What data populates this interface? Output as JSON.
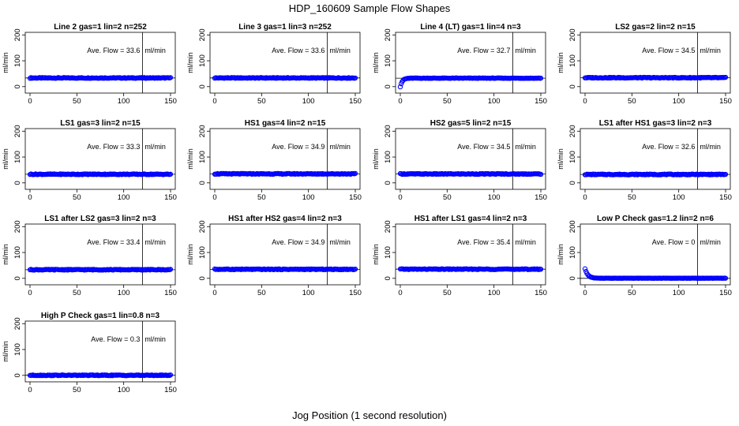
{
  "figure": {
    "title": "HDP_160609  Sample Flow Shapes",
    "xlabel": "Jog Position (1 second resolution)"
  },
  "colors": {
    "points": "#0000ff",
    "axes": "#000000"
  },
  "chart_data": [
    {
      "type": "scatter",
      "title": "Line 2 gas=1 lin=2 n=252",
      "ylabel": "ml/min",
      "xlim": [
        0,
        150
      ],
      "ylim": [
        -25,
        210
      ],
      "xticks": [
        0,
        50,
        100,
        150
      ],
      "yticks": [
        0,
        100,
        200
      ],
      "vline": 120,
      "hline": 33.6,
      "annotation": "Ave. Flow =  33.6",
      "unit": "ml/min",
      "profile": "flat",
      "level": 33.6
    },
    {
      "type": "scatter",
      "title": "Line 3 gas=1 lin=3 n=252",
      "ylabel": "ml/min",
      "xlim": [
        0,
        150
      ],
      "ylim": [
        -25,
        210
      ],
      "xticks": [
        0,
        50,
        100,
        150
      ],
      "yticks": [
        0,
        100,
        200
      ],
      "vline": 120,
      "hline": 33.6,
      "annotation": "Ave. Flow =  33.6",
      "unit": "ml/min",
      "profile": "flat",
      "level": 33.6
    },
    {
      "type": "scatter",
      "title": "Line 4 (LT) gas=1 lin=4 n=3",
      "ylabel": "ml/min",
      "xlim": [
        0,
        150
      ],
      "ylim": [
        -25,
        210
      ],
      "xticks": [
        0,
        50,
        100,
        150
      ],
      "yticks": [
        0,
        100,
        200
      ],
      "vline": 120,
      "hline": 32.7,
      "annotation": "Ave. Flow =  32.7",
      "unit": "ml/min",
      "profile": "rise",
      "level": 32.7
    },
    {
      "type": "scatter",
      "title": "LS2 gas=2 lin=2 n=15",
      "ylabel": "ml/min",
      "xlim": [
        0,
        150
      ],
      "ylim": [
        -25,
        210
      ],
      "xticks": [
        0,
        50,
        100,
        150
      ],
      "yticks": [
        0,
        100,
        200
      ],
      "vline": 120,
      "hline": 34.5,
      "annotation": "Ave. Flow =  34.5",
      "unit": "ml/min",
      "profile": "flat",
      "level": 34.5
    },
    {
      "type": "scatter",
      "title": "LS1 gas=3 lin=2 n=15",
      "ylabel": "ml/min",
      "xlim": [
        0,
        150
      ],
      "ylim": [
        -25,
        210
      ],
      "xticks": [
        0,
        50,
        100,
        150
      ],
      "yticks": [
        0,
        100,
        200
      ],
      "vline": 120,
      "hline": 33.3,
      "annotation": "Ave. Flow =  33.3",
      "unit": "ml/min",
      "profile": "flat",
      "level": 33.3
    },
    {
      "type": "scatter",
      "title": "HS1 gas=4 lin=2 n=15",
      "ylabel": "ml/min",
      "xlim": [
        0,
        150
      ],
      "ylim": [
        -25,
        210
      ],
      "xticks": [
        0,
        50,
        100,
        150
      ],
      "yticks": [
        0,
        100,
        200
      ],
      "vline": 120,
      "hline": 34.9,
      "annotation": "Ave. Flow =  34.9",
      "unit": "ml/min",
      "profile": "flat",
      "level": 34.9
    },
    {
      "type": "scatter",
      "title": "HS2 gas=5 lin=2 n=15",
      "ylabel": "ml/min",
      "xlim": [
        0,
        150
      ],
      "ylim": [
        -25,
        210
      ],
      "xticks": [
        0,
        50,
        100,
        150
      ],
      "yticks": [
        0,
        100,
        200
      ],
      "vline": 120,
      "hline": 34.5,
      "annotation": "Ave. Flow =  34.5",
      "unit": "ml/min",
      "profile": "flat",
      "level": 34.5
    },
    {
      "type": "scatter",
      "title": "LS1 after HS1 gas=3 lin=2 n=3",
      "ylabel": "ml/min",
      "xlim": [
        0,
        150
      ],
      "ylim": [
        -25,
        210
      ],
      "xticks": [
        0,
        50,
        100,
        150
      ],
      "yticks": [
        0,
        100,
        200
      ],
      "vline": 120,
      "hline": 32.6,
      "annotation": "Ave. Flow =  32.6",
      "unit": "ml/min",
      "profile": "flat",
      "level": 32.6
    },
    {
      "type": "scatter",
      "title": "LS1 after LS2 gas=3 lin=2 n=3",
      "ylabel": "ml/min",
      "xlim": [
        0,
        150
      ],
      "ylim": [
        -25,
        210
      ],
      "xticks": [
        0,
        50,
        100,
        150
      ],
      "yticks": [
        0,
        100,
        200
      ],
      "vline": 120,
      "hline": 33.4,
      "annotation": "Ave. Flow =  33.4",
      "unit": "ml/min",
      "profile": "flat",
      "level": 33.4
    },
    {
      "type": "scatter",
      "title": "HS1 after HS2 gas=4 lin=2 n=3",
      "ylabel": "ml/min",
      "xlim": [
        0,
        150
      ],
      "ylim": [
        -25,
        210
      ],
      "xticks": [
        0,
        50,
        100,
        150
      ],
      "yticks": [
        0,
        100,
        200
      ],
      "vline": 120,
      "hline": 34.9,
      "annotation": "Ave. Flow =  34.9",
      "unit": "ml/min",
      "profile": "flat",
      "level": 34.9
    },
    {
      "type": "scatter",
      "title": "HS1 after LS1 gas=4 lin=2 n=3",
      "ylabel": "ml/min",
      "xlim": [
        0,
        150
      ],
      "ylim": [
        -25,
        210
      ],
      "xticks": [
        0,
        50,
        100,
        150
      ],
      "yticks": [
        0,
        100,
        200
      ],
      "vline": 120,
      "hline": 35.4,
      "annotation": "Ave. Flow =  35.4",
      "unit": "ml/min",
      "profile": "flat",
      "level": 35.4
    },
    {
      "type": "scatter",
      "title": "Low P Check gas=1.2 lin=2 n=6",
      "ylabel": "ml/min",
      "xlim": [
        0,
        150
      ],
      "ylim": [
        -25,
        210
      ],
      "xticks": [
        0,
        50,
        100,
        150
      ],
      "yticks": [
        0,
        100,
        200
      ],
      "vline": 120,
      "hline": 0,
      "annotation": "Ave. Flow =  0",
      "unit": "ml/min",
      "profile": "decay",
      "level": 0
    },
    {
      "type": "scatter",
      "title": "High P Check gas=1 lin=0.8 n=3",
      "ylabel": "ml/min",
      "xlim": [
        0,
        150
      ],
      "ylim": [
        -25,
        210
      ],
      "xticks": [
        0,
        50,
        100,
        150
      ],
      "yticks": [
        0,
        100,
        200
      ],
      "vline": 120,
      "hline": 0.3,
      "annotation": "Ave. Flow =  0.3",
      "unit": "ml/min",
      "profile": "flat",
      "level": 0.3
    }
  ]
}
